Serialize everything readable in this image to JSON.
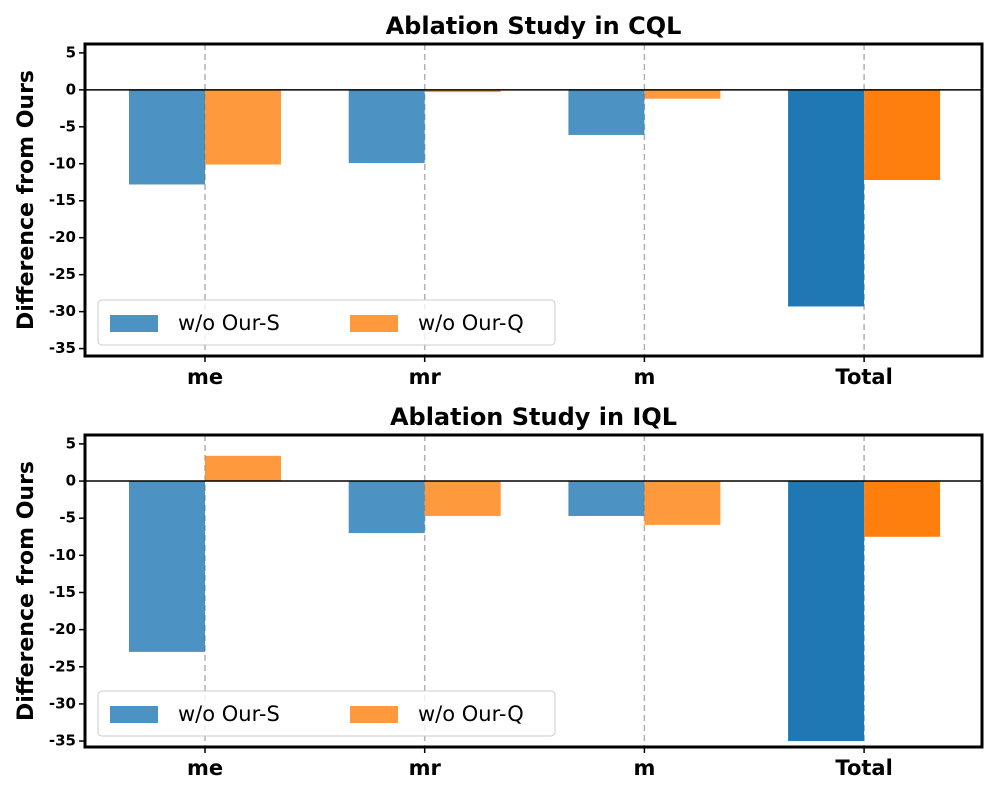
{
  "chart_data": [
    {
      "type": "bar",
      "title": "Ablation Study in CQL",
      "y_label": "Difference from Ours",
      "categories": [
        "me",
        "mr",
        "m",
        "Total"
      ],
      "series": [
        {
          "name": "w/o Our-S",
          "color": "#1f77b4",
          "values": [
            -12.8,
            -9.9,
            -6.1,
            -29.3
          ]
        },
        {
          "name": "w/o Our-Q",
          "color": "#ff7f0e",
          "values": [
            -10.1,
            -0.3,
            -1.2,
            -12.2
          ]
        }
      ],
      "ylim": [
        -36,
        6.2
      ],
      "yticks": [
        5,
        0,
        -5,
        -10,
        -15,
        -20,
        -25,
        -30,
        -35
      ],
      "grid": "x",
      "legend": "lower left"
    },
    {
      "type": "bar",
      "title": "Ablation Study in IQL",
      "y_label": "Difference from Ours",
      "categories": [
        "me",
        "mr",
        "m",
        "Total"
      ],
      "series": [
        {
          "name": "w/o Our-S",
          "color": "#1f77b4",
          "values": [
            -23.0,
            -7.0,
            -4.7,
            -35.0
          ]
        },
        {
          "name": "w/o Our-Q",
          "color": "#ff7f0e",
          "values": [
            3.4,
            -4.7,
            -5.9,
            -7.5
          ]
        }
      ],
      "ylim": [
        -35.8,
        6.2
      ],
      "yticks": [
        5,
        0,
        -5,
        -10,
        -15,
        -20,
        -25,
        -30,
        -35
      ],
      "grid": "x",
      "legend": "lower left"
    }
  ]
}
